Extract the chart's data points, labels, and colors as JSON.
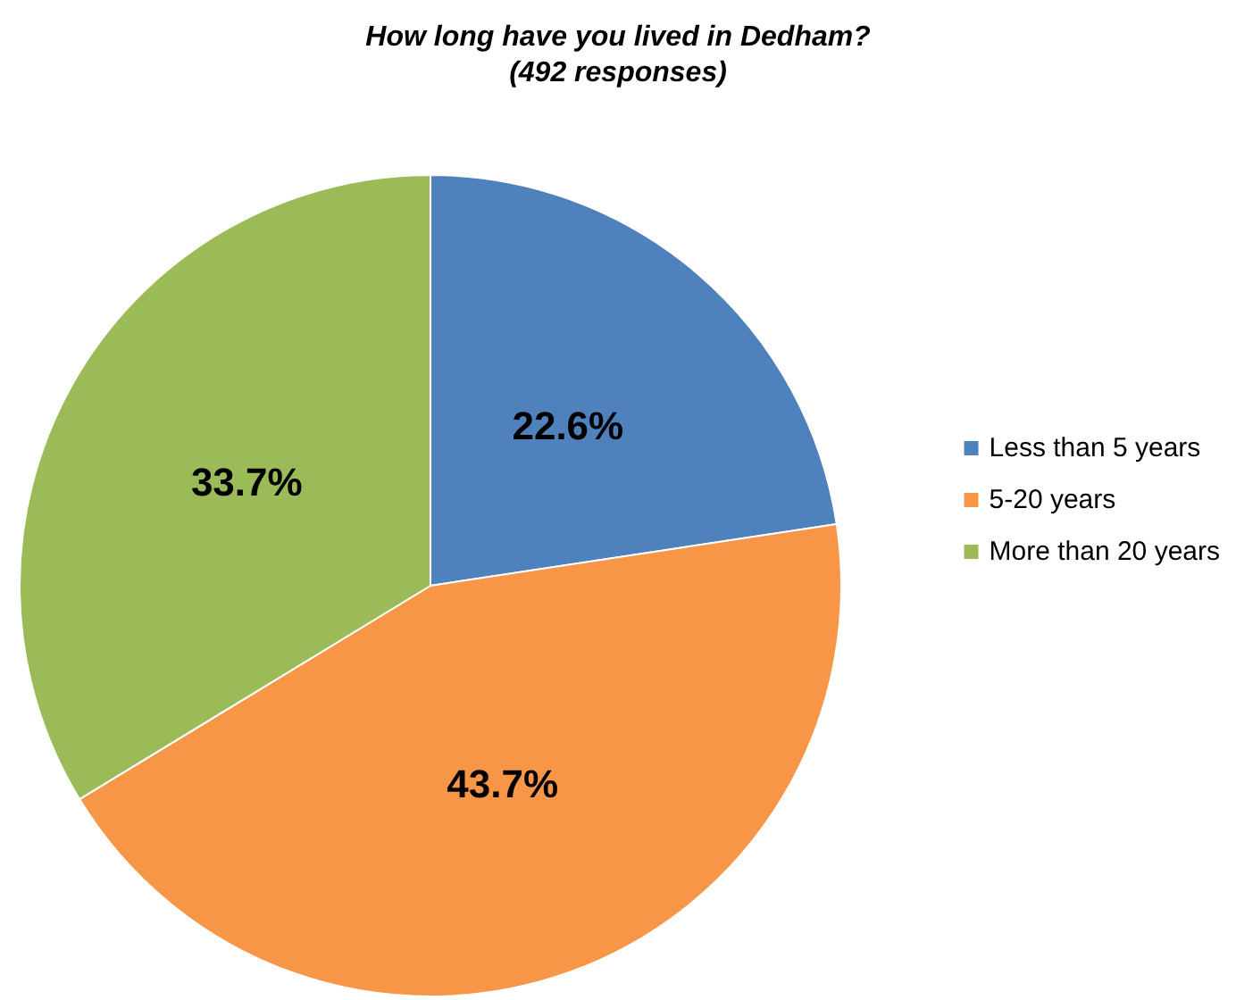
{
  "chart_data": {
    "type": "pie",
    "title": "How long have you lived in Dedham?",
    "subtitle": "(492 responses)",
    "categories": [
      "Less than 5 years",
      "5-20 years",
      "More than 20 years"
    ],
    "values": [
      22.6,
      43.7,
      33.7
    ],
    "colors": [
      "#4f81bd",
      "#f79646",
      "#9bbb59"
    ],
    "value_labels": [
      "22.6%",
      "43.7%",
      "33.7%"
    ],
    "legend": "right"
  }
}
